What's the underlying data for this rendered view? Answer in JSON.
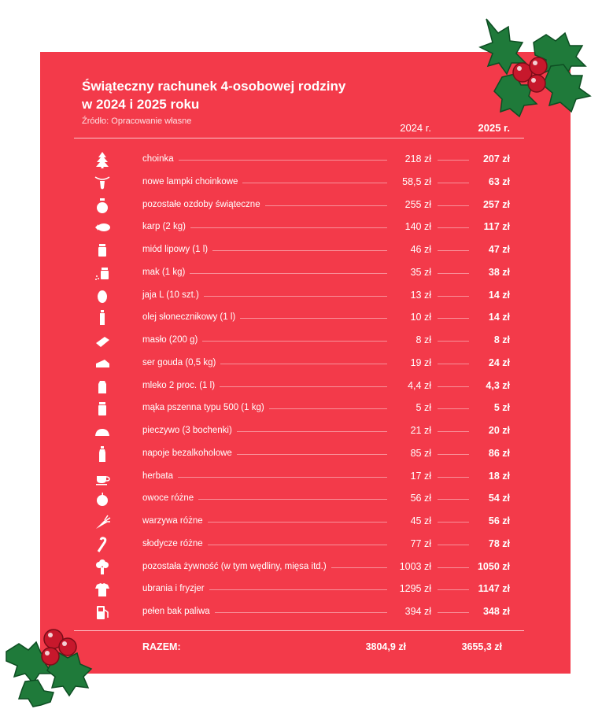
{
  "chart_data": {
    "type": "table",
    "title": "Świąteczny rachunek 4-osobowej rodziny w 2024 i 2025 roku",
    "title_lines": [
      "Świąteczny rachunek 4-osobowej rodziny",
      "w 2024 i 2025 roku"
    ],
    "source": "Źródło: Opracowanie własne",
    "columns": [
      "2024 r.",
      "2025 r."
    ],
    "rows": [
      {
        "label": "choinka",
        "v2024": "218 zł",
        "v2025": "207 zł",
        "icon": "tree-icon"
      },
      {
        "label": "nowe lampki choinkowe",
        "v2024": "58,5 zł",
        "v2025": "63 zł",
        "icon": "lights-icon"
      },
      {
        "label": "pozostałe ozdoby świąteczne",
        "v2024": "255 zł",
        "v2025": "257 zł",
        "icon": "bauble-icon"
      },
      {
        "label": "karp (2 kg)",
        "v2024": "140 zł",
        "v2025": "117 zł",
        "icon": "fish-icon"
      },
      {
        "label": "miód lipowy (1 l)",
        "v2024": "46 zł",
        "v2025": "47 zł",
        "icon": "honey-jar-icon"
      },
      {
        "label": "mak (1 kg)",
        "v2024": "35 zł",
        "v2025": "38 zł",
        "icon": "poppy-seed-icon"
      },
      {
        "label": "jaja L (10 szt.)",
        "v2024": "13 zł",
        "v2025": "14 zł",
        "icon": "egg-icon"
      },
      {
        "label": "olej słonecznikowy (1 l)",
        "v2024": "10 zł",
        "v2025": "14 zł",
        "icon": "oil-bottle-icon"
      },
      {
        "label": "masło (200 g)",
        "v2024": "8 zł",
        "v2025": "8 zł",
        "icon": "butter-icon"
      },
      {
        "label": "ser gouda (0,5 kg)",
        "v2024": "19 zł",
        "v2025": "24 zł",
        "icon": "cheese-icon"
      },
      {
        "label": "mleko 2 proc. (1 l)",
        "v2024": "4,4 zł",
        "v2025": "4,3 zł",
        "icon": "milk-icon"
      },
      {
        "label": "mąka pszenna typu 500 (1 kg)",
        "v2024": "5 zł",
        "v2025": "5 zł",
        "icon": "flour-icon"
      },
      {
        "label": "pieczywo (3 bochenki)",
        "v2024": "21 zł",
        "v2025": "20 zł",
        "icon": "bread-icon"
      },
      {
        "label": "napoje bezalkoholowe",
        "v2024": "85 zł",
        "v2025": "86 zł",
        "icon": "drink-bottle-icon"
      },
      {
        "label": "herbata",
        "v2024": "17 zł",
        "v2025": "18 zł",
        "icon": "tea-cup-icon"
      },
      {
        "label": "owoce różne",
        "v2024": "56 zł",
        "v2025": "54 zł",
        "icon": "apple-icon"
      },
      {
        "label": "warzywa różne",
        "v2024": "45 zł",
        "v2025": "56 zł",
        "icon": "carrot-icon"
      },
      {
        "label": "słodycze różne",
        "v2024": "77 zł",
        "v2025": "78 zł",
        "icon": "candy-cane-icon"
      },
      {
        "label": "pozostała żywność (w tym wędliny, mięsa itd.)",
        "v2024": "1003 zł",
        "v2025": "1050 zł",
        "icon": "broccoli-icon"
      },
      {
        "label": "ubrania i fryzjer",
        "v2024": "1295 zł",
        "v2025": "1147 zł",
        "icon": "shirt-icon"
      },
      {
        "label": "pełen bak paliwa",
        "v2024": "394 zł",
        "v2025": "348 zł",
        "icon": "fuel-pump-icon"
      }
    ],
    "total": {
      "label": "RAZEM:",
      "v2024": "3804,9 zł",
      "v2025": "3655,3 zł"
    }
  },
  "colors": {
    "background": "#f33a4a",
    "text": "#ffffff",
    "holly_leaf": "#1f7a3a",
    "berry": "#c7182c"
  }
}
